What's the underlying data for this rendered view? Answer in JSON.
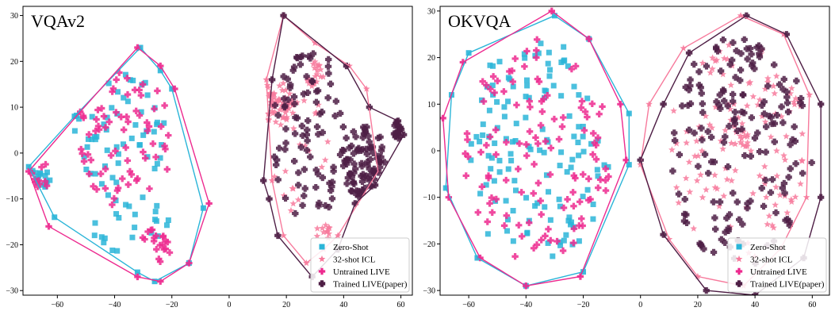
{
  "chart_data": [
    {
      "type": "scatter",
      "title": "VQAv2",
      "xlim": [
        -72,
        64
      ],
      "ylim": [
        -31,
        32
      ],
      "xticks": [
        -60,
        -40,
        -20,
        0,
        20,
        40,
        60
      ],
      "yticks": [
        -30,
        -20,
        -10,
        0,
        10,
        20,
        30
      ],
      "legend_position": "bottom-right",
      "grid": false,
      "series": [
        {
          "name": "Zero-Shot",
          "marker": "square",
          "color": "#2bb5d8",
          "hull": [
            [
              -31,
              23
            ],
            [
              -54,
              8
            ],
            [
              -70,
              -3
            ],
            [
              -61,
              -14
            ],
            [
              -32,
              -26
            ],
            [
              -26,
              -28
            ],
            [
              -14,
              -24
            ],
            [
              -9,
              -12
            ],
            [
              -20,
              14
            ],
            [
              -24,
              18
            ]
          ],
          "clusters": [
            {
              "cx": -38,
              "cy": 5,
              "rx": 16,
              "ry": 13,
              "n": 55
            },
            {
              "cx": -66,
              "cy": -6,
              "rx": 4,
              "ry": 3,
              "n": 14
            },
            {
              "cx": -35,
              "cy": -15,
              "rx": 15,
              "ry": 7,
              "n": 25
            }
          ]
        },
        {
          "name": "32-shot ICL",
          "marker": "star",
          "color": "#f77a9c",
          "hull": [
            [
              19,
              30
            ],
            [
              13,
              16
            ],
            [
              15,
              -6
            ],
            [
              19,
              -18
            ],
            [
              27,
              -24
            ],
            [
              33,
              -21
            ],
            [
              38,
              -18
            ],
            [
              52,
              -4
            ],
            [
              48,
              14
            ],
            [
              42,
              19
            ],
            [
              30,
              24
            ]
          ],
          "clusters": [
            {
              "cx": 17,
              "cy": 11,
              "rx": 6,
              "ry": 5,
              "n": 60
            },
            {
              "cx": 30,
              "cy": 17,
              "rx": 3,
              "ry": 3,
              "n": 20
            },
            {
              "cx": 33,
              "cy": -17,
              "rx": 3,
              "ry": 2,
              "n": 12
            },
            {
              "cx": 25,
              "cy": 0,
              "rx": 10,
              "ry": 14,
              "n": 20
            }
          ]
        },
        {
          "name": "Untrained LIVE",
          "marker": "plus",
          "color": "#ed2a8f",
          "hull": [
            [
              -32,
              23
            ],
            [
              -52,
              9
            ],
            [
              -70,
              -4
            ],
            [
              -63,
              -16
            ],
            [
              -32,
              -27
            ],
            [
              -24,
              -28
            ],
            [
              -14,
              -24
            ],
            [
              -7,
              -11
            ],
            [
              -19,
              14
            ],
            [
              -24,
              19
            ]
          ],
          "clusters": [
            {
              "cx": -36,
              "cy": 3,
              "rx": 16,
              "ry": 15,
              "n": 70
            },
            {
              "cx": -66,
              "cy": -5,
              "rx": 4,
              "ry": 3,
              "n": 10
            },
            {
              "cx": -25,
              "cy": -20,
              "rx": 6,
              "ry": 4,
              "n": 20
            }
          ]
        },
        {
          "name": "Trained LIVE(paper)",
          "marker": "x",
          "color": "#4e1e45",
          "hull": [
            [
              19,
              30
            ],
            [
              41,
              19
            ],
            [
              49,
              10
            ],
            [
              59,
              7
            ],
            [
              61,
              4
            ],
            [
              51,
              -7
            ],
            [
              44,
              -11
            ],
            [
              38,
              -21
            ],
            [
              29,
              -27
            ],
            [
              17,
              -18
            ],
            [
              14,
              -10
            ],
            [
              12,
              -6
            ],
            [
              15,
              16
            ]
          ],
          "clusters": [
            {
              "cx": 47,
              "cy": -2,
              "rx": 8,
              "ry": 8,
              "n": 90
            },
            {
              "cx": 59,
              "cy": 5,
              "rx": 1.5,
              "ry": 2,
              "n": 18
            },
            {
              "cx": 28,
              "cy": 5,
              "rx": 13,
              "ry": 20,
              "n": 90
            }
          ]
        }
      ]
    },
    {
      "type": "scatter",
      "title": "OKVQA",
      "xlim": [
        -70,
        66
      ],
      "ylim": [
        -31,
        31
      ],
      "xticks": [
        -60,
        -40,
        -20,
        0,
        20,
        40,
        60
      ],
      "yticks": [
        -30,
        -20,
        -10,
        0,
        10,
        20,
        30
      ],
      "legend_position": "bottom-right",
      "grid": false,
      "series": [
        {
          "name": "Zero-Shot",
          "marker": "square",
          "color": "#2bb5d8",
          "hull": [
            [
              -30,
              29
            ],
            [
              -60,
              21
            ],
            [
              -66,
              12
            ],
            [
              -68,
              -8
            ],
            [
              -57,
              -23
            ],
            [
              -40,
              -29
            ],
            [
              -20,
              -26
            ],
            [
              -4,
              -3
            ],
            [
              -4,
              8
            ],
            [
              -18,
              24
            ]
          ],
          "clusters": [
            {
              "cx": -36,
              "cy": 0,
              "rx": 26,
              "ry": 24,
              "n": 130
            }
          ]
        },
        {
          "name": "32-shot ICL",
          "marker": "star",
          "color": "#f77a9c",
          "hull": [
            [
              35,
              29
            ],
            [
              15,
              22
            ],
            [
              3,
              10
            ],
            [
              0,
              -3
            ],
            [
              10,
              -19
            ],
            [
              20,
              -27
            ],
            [
              36,
              -29
            ],
            [
              49,
              -21
            ],
            [
              58,
              -10
            ],
            [
              59,
              12
            ],
            [
              50,
              25
            ]
          ],
          "clusters": [
            {
              "cx": 34,
              "cy": 0,
              "rx": 24,
              "ry": 24,
              "n": 120
            },
            {
              "cx": 35,
              "cy": 3,
              "rx": 4,
              "ry": 3,
              "n": 15
            }
          ]
        },
        {
          "name": "Untrained LIVE",
          "marker": "plus",
          "color": "#ed2a8f",
          "hull": [
            [
              -31,
              30
            ],
            [
              -62,
              19
            ],
            [
              -69,
              7
            ],
            [
              -67,
              -10
            ],
            [
              -56,
              -23
            ],
            [
              -40,
              -29
            ],
            [
              -21,
              -27
            ],
            [
              -5,
              -2
            ],
            [
              -7,
              10
            ],
            [
              -18,
              24
            ]
          ],
          "clusters": [
            {
              "cx": -36,
              "cy": 0,
              "rx": 26,
              "ry": 24,
              "n": 120
            }
          ]
        },
        {
          "name": "Trained LIVE(paper)",
          "marker": "x",
          "color": "#4e1e45",
          "hull": [
            [
              37,
              29
            ],
            [
              17,
              21
            ],
            [
              8,
              10
            ],
            [
              0,
              -2
            ],
            [
              8,
              -18
            ],
            [
              23,
              -30
            ],
            [
              40,
              -31
            ],
            [
              57,
              -23
            ],
            [
              63,
              -10
            ],
            [
              63,
              10
            ],
            [
              51,
              25
            ]
          ],
          "clusters": [
            {
              "cx": 35,
              "cy": 0,
              "rx": 25,
              "ry": 25,
              "n": 170
            }
          ]
        }
      ]
    }
  ]
}
